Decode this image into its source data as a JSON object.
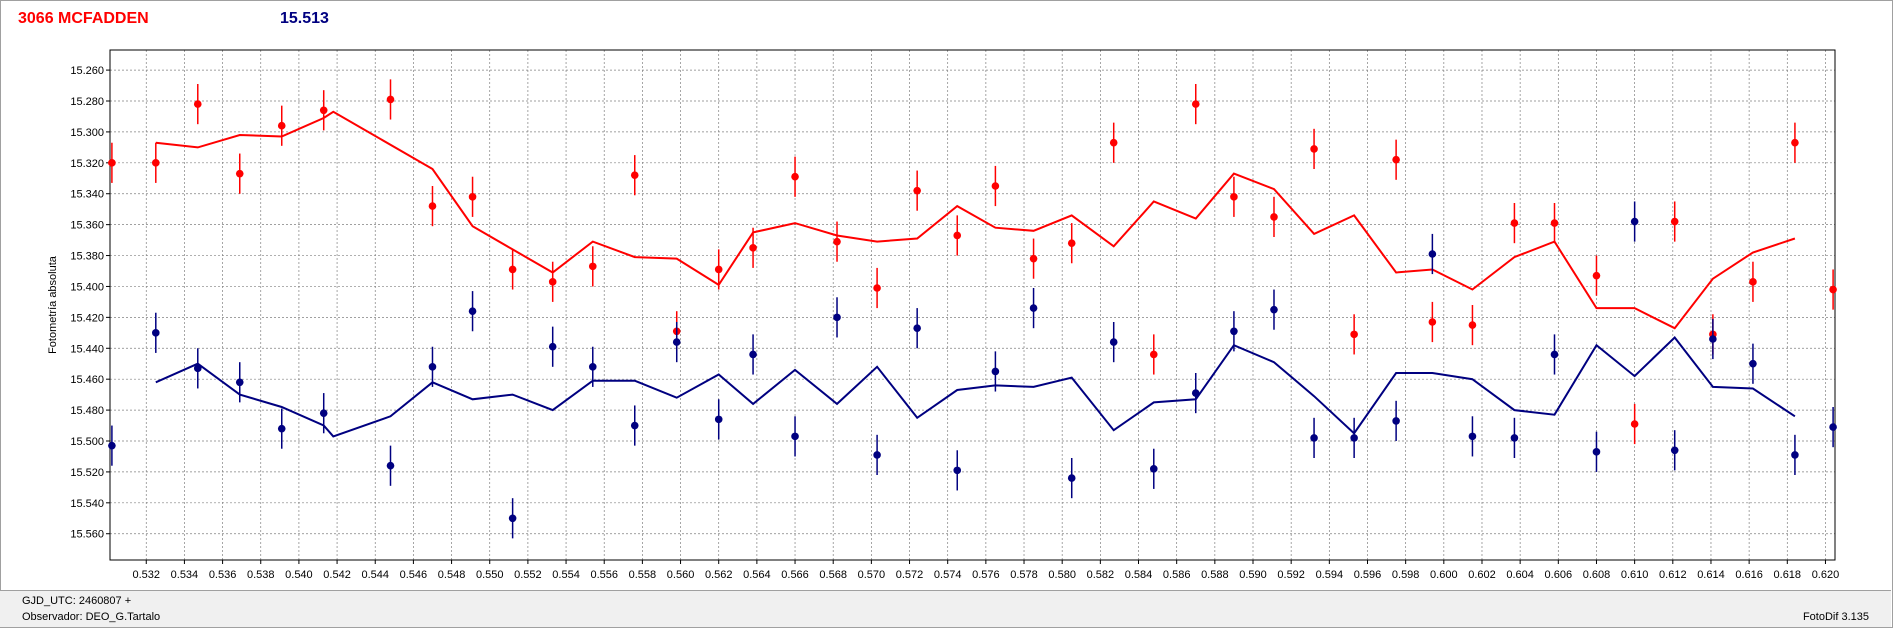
{
  "header": {
    "star_name": "3066 MCFADDEN",
    "magnitude": "15.513"
  },
  "footer": {
    "gjd": "GJD_UTC: 2460807 +",
    "observer": "Observador: DEO_G.Tartalo",
    "version": "FotoDif 3.135"
  },
  "colors": {
    "red_series": "#ff0000",
    "blue_series": "#000080",
    "grid": "#808080"
  },
  "chart_data": {
    "type": "scatter",
    "title": "3066 MCFADDEN",
    "xlabel": "",
    "ylabel": "Fotometría absoluta",
    "xlim": [
      0.5301,
      0.6205
    ],
    "ylim": [
      15.577,
      15.247
    ],
    "y_inverted": true,
    "grid": true,
    "x_ticks": [
      0.532,
      0.534,
      0.536,
      0.538,
      0.54,
      0.542,
      0.544,
      0.546,
      0.548,
      0.55,
      0.552,
      0.554,
      0.556,
      0.558,
      0.56,
      0.562,
      0.564,
      0.566,
      0.568,
      0.57,
      0.572,
      0.574,
      0.576,
      0.578,
      0.58,
      0.582,
      0.584,
      0.586,
      0.588,
      0.59,
      0.592,
      0.594,
      0.596,
      0.598,
      0.6,
      0.602,
      0.604,
      0.606,
      0.608,
      0.61,
      0.612,
      0.614,
      0.616,
      0.618,
      0.62
    ],
    "x_tick_labels": [
      "0.532",
      "0.534",
      "0.536",
      "0.538",
      "0.540",
      "0.542",
      "0.544",
      "0.546",
      "0.548",
      "0.550",
      "0.552",
      "0.554",
      "0.556",
      "0.558",
      "0.560",
      "0.562",
      "0.564",
      "0.566",
      "0.568",
      "0.570",
      "0.572",
      "0.574",
      "0.576",
      "0.578",
      "0.580",
      "0.582",
      "0.584",
      "0.586",
      "0.588",
      "0.590",
      "0.592",
      "0.594",
      "0.596",
      "0.598",
      "0.600",
      "0.602",
      "0.604",
      "0.606",
      "0.608",
      "0.610",
      "0.612",
      "0.614",
      "0.616",
      "0.618",
      "0.620"
    ],
    "y_ticks": [
      15.26,
      15.28,
      15.3,
      15.32,
      15.34,
      15.36,
      15.38,
      15.4,
      15.42,
      15.44,
      15.46,
      15.48,
      15.5,
      15.52,
      15.54,
      15.56
    ],
    "y_tick_labels": [
      "15.260",
      "15.280",
      "15.300",
      "15.320",
      "15.340",
      "15.360",
      "15.380",
      "15.400",
      "15.420",
      "15.440",
      "15.460",
      "15.480",
      "15.500",
      "15.520",
      "15.540",
      "15.560"
    ],
    "series": [
      {
        "color": "#ff0000",
        "points": [
          {
            "x": 0.5302,
            "y": 15.32,
            "err": 0.013
          },
          {
            "x": 0.5325,
            "y": 15.32,
            "err": 0.013
          },
          {
            "x": 0.5347,
            "y": 15.282,
            "err": 0.013
          },
          {
            "x": 0.5369,
            "y": 15.327,
            "err": 0.013
          },
          {
            "x": 0.5391,
            "y": 15.296,
            "err": 0.013
          },
          {
            "x": 0.5413,
            "y": 15.286,
            "err": 0.013
          },
          {
            "x": 0.5448,
            "y": 15.279,
            "err": 0.013
          },
          {
            "x": 0.547,
            "y": 15.348,
            "err": 0.013
          },
          {
            "x": 0.5491,
            "y": 15.342,
            "err": 0.013
          },
          {
            "x": 0.5512,
            "y": 15.389,
            "err": 0.013
          },
          {
            "x": 0.5533,
            "y": 15.397,
            "err": 0.013
          },
          {
            "x": 0.5554,
            "y": 15.387,
            "err": 0.013
          },
          {
            "x": 0.5576,
            "y": 15.328,
            "err": 0.013
          },
          {
            "x": 0.5598,
            "y": 15.429,
            "err": 0.013
          },
          {
            "x": 0.562,
            "y": 15.389,
            "err": 0.013
          },
          {
            "x": 0.5638,
            "y": 15.375,
            "err": 0.013
          },
          {
            "x": 0.566,
            "y": 15.329,
            "err": 0.013
          },
          {
            "x": 0.5682,
            "y": 15.371,
            "err": 0.013
          },
          {
            "x": 0.5703,
            "y": 15.401,
            "err": 0.013
          },
          {
            "x": 0.5724,
            "y": 15.338,
            "err": 0.013
          },
          {
            "x": 0.5745,
            "y": 15.367,
            "err": 0.013
          },
          {
            "x": 0.5765,
            "y": 15.335,
            "err": 0.013
          },
          {
            "x": 0.5785,
            "y": 15.382,
            "err": 0.013
          },
          {
            "x": 0.5805,
            "y": 15.372,
            "err": 0.013
          },
          {
            "x": 0.5827,
            "y": 15.307,
            "err": 0.013
          },
          {
            "x": 0.5848,
            "y": 15.444,
            "err": 0.013
          },
          {
            "x": 0.587,
            "y": 15.282,
            "err": 0.013
          },
          {
            "x": 0.589,
            "y": 15.342,
            "err": 0.013
          },
          {
            "x": 0.5911,
            "y": 15.355,
            "err": 0.013
          },
          {
            "x": 0.5932,
            "y": 15.311,
            "err": 0.013
          },
          {
            "x": 0.5953,
            "y": 15.431,
            "err": 0.013
          },
          {
            "x": 0.5975,
            "y": 15.318,
            "err": 0.013
          },
          {
            "x": 0.5994,
            "y": 15.423,
            "err": 0.013
          },
          {
            "x": 0.6015,
            "y": 15.425,
            "err": 0.013
          },
          {
            "x": 0.6037,
            "y": 15.359,
            "err": 0.013
          },
          {
            "x": 0.6058,
            "y": 15.359,
            "err": 0.013
          },
          {
            "x": 0.608,
            "y": 15.393,
            "err": 0.013
          },
          {
            "x": 0.61,
            "y": 15.489,
            "err": 0.013
          },
          {
            "x": 0.6121,
            "y": 15.358,
            "err": 0.013
          },
          {
            "x": 0.6141,
            "y": 15.431,
            "err": 0.013
          },
          {
            "x": 0.6162,
            "y": 15.397,
            "err": 0.013
          },
          {
            "x": 0.6184,
            "y": 15.307,
            "err": 0.013
          },
          {
            "x": 0.6204,
            "y": 15.402,
            "err": 0.013
          }
        ],
        "line": [
          {
            "x": 0.5325,
            "y": 15.307
          },
          {
            "x": 0.5347,
            "y": 15.31
          },
          {
            "x": 0.5369,
            "y": 15.302
          },
          {
            "x": 0.5391,
            "y": 15.303
          },
          {
            "x": 0.5413,
            "y": 15.291
          },
          {
            "x": 0.5418,
            "y": 15.287
          },
          {
            "x": 0.547,
            "y": 15.324
          },
          {
            "x": 0.5491,
            "y": 15.361
          },
          {
            "x": 0.5512,
            "y": 15.376
          },
          {
            "x": 0.5533,
            "y": 15.391
          },
          {
            "x": 0.5554,
            "y": 15.371
          },
          {
            "x": 0.5576,
            "y": 15.381
          },
          {
            "x": 0.5598,
            "y": 15.382
          },
          {
            "x": 0.562,
            "y": 15.399
          },
          {
            "x": 0.5638,
            "y": 15.365
          },
          {
            "x": 0.566,
            "y": 15.359
          },
          {
            "x": 0.5682,
            "y": 15.367
          },
          {
            "x": 0.5703,
            "y": 15.371
          },
          {
            "x": 0.5724,
            "y": 15.369
          },
          {
            "x": 0.5745,
            "y": 15.348
          },
          {
            "x": 0.5765,
            "y": 15.362
          },
          {
            "x": 0.5785,
            "y": 15.364
          },
          {
            "x": 0.5805,
            "y": 15.354
          },
          {
            "x": 0.5827,
            "y": 15.374
          },
          {
            "x": 0.5848,
            "y": 15.345
          },
          {
            "x": 0.587,
            "y": 15.356
          },
          {
            "x": 0.589,
            "y": 15.327
          },
          {
            "x": 0.5911,
            "y": 15.337
          },
          {
            "x": 0.5932,
            "y": 15.366
          },
          {
            "x": 0.5953,
            "y": 15.354
          },
          {
            "x": 0.5975,
            "y": 15.391
          },
          {
            "x": 0.5994,
            "y": 15.389
          },
          {
            "x": 0.6015,
            "y": 15.402
          },
          {
            "x": 0.6037,
            "y": 15.381
          },
          {
            "x": 0.6058,
            "y": 15.371
          },
          {
            "x": 0.608,
            "y": 15.414
          },
          {
            "x": 0.61,
            "y": 15.414
          },
          {
            "x": 0.6121,
            "y": 15.427
          },
          {
            "x": 0.6141,
            "y": 15.395
          },
          {
            "x": 0.6162,
            "y": 15.378
          },
          {
            "x": 0.6184,
            "y": 15.369
          }
        ]
      },
      {
        "color": "#000080",
        "points": [
          {
            "x": 0.5302,
            "y": 15.503,
            "err": 0.013
          },
          {
            "x": 0.5325,
            "y": 15.43,
            "err": 0.013
          },
          {
            "x": 0.5347,
            "y": 15.453,
            "err": 0.013
          },
          {
            "x": 0.5369,
            "y": 15.462,
            "err": 0.013
          },
          {
            "x": 0.5391,
            "y": 15.492,
            "err": 0.013
          },
          {
            "x": 0.5413,
            "y": 15.482,
            "err": 0.013
          },
          {
            "x": 0.5448,
            "y": 15.516,
            "err": 0.013
          },
          {
            "x": 0.547,
            "y": 15.452,
            "err": 0.013
          },
          {
            "x": 0.5491,
            "y": 15.416,
            "err": 0.013
          },
          {
            "x": 0.5512,
            "y": 15.55,
            "err": 0.013
          },
          {
            "x": 0.5533,
            "y": 15.439,
            "err": 0.013
          },
          {
            "x": 0.5554,
            "y": 15.452,
            "err": 0.013
          },
          {
            "x": 0.5576,
            "y": 15.49,
            "err": 0.013
          },
          {
            "x": 0.5598,
            "y": 15.436,
            "err": 0.013
          },
          {
            "x": 0.562,
            "y": 15.486,
            "err": 0.013
          },
          {
            "x": 0.5638,
            "y": 15.444,
            "err": 0.013
          },
          {
            "x": 0.566,
            "y": 15.497,
            "err": 0.013
          },
          {
            "x": 0.5682,
            "y": 15.42,
            "err": 0.013
          },
          {
            "x": 0.5703,
            "y": 15.509,
            "err": 0.013
          },
          {
            "x": 0.5724,
            "y": 15.427,
            "err": 0.013
          },
          {
            "x": 0.5745,
            "y": 15.519,
            "err": 0.013
          },
          {
            "x": 0.5765,
            "y": 15.455,
            "err": 0.013
          },
          {
            "x": 0.5785,
            "y": 15.414,
            "err": 0.013
          },
          {
            "x": 0.5805,
            "y": 15.524,
            "err": 0.013
          },
          {
            "x": 0.5827,
            "y": 15.436,
            "err": 0.013
          },
          {
            "x": 0.5848,
            "y": 15.518,
            "err": 0.013
          },
          {
            "x": 0.587,
            "y": 15.469,
            "err": 0.013
          },
          {
            "x": 0.589,
            "y": 15.429,
            "err": 0.013
          },
          {
            "x": 0.5911,
            "y": 15.415,
            "err": 0.013
          },
          {
            "x": 0.5932,
            "y": 15.498,
            "err": 0.013
          },
          {
            "x": 0.5953,
            "y": 15.498,
            "err": 0.013
          },
          {
            "x": 0.5975,
            "y": 15.487,
            "err": 0.013
          },
          {
            "x": 0.5994,
            "y": 15.379,
            "err": 0.013
          },
          {
            "x": 0.6015,
            "y": 15.497,
            "err": 0.013
          },
          {
            "x": 0.6037,
            "y": 15.498,
            "err": 0.013
          },
          {
            "x": 0.6058,
            "y": 15.444,
            "err": 0.013
          },
          {
            "x": 0.608,
            "y": 15.507,
            "err": 0.013
          },
          {
            "x": 0.61,
            "y": 15.358,
            "err": 0.013
          },
          {
            "x": 0.6121,
            "y": 15.506,
            "err": 0.013
          },
          {
            "x": 0.6141,
            "y": 15.434,
            "err": 0.013
          },
          {
            "x": 0.6162,
            "y": 15.45,
            "err": 0.013
          },
          {
            "x": 0.6184,
            "y": 15.509,
            "err": 0.013
          },
          {
            "x": 0.6204,
            "y": 15.491,
            "err": 0.013
          }
        ],
        "line": [
          {
            "x": 0.5325,
            "y": 15.462
          },
          {
            "x": 0.5347,
            "y": 15.45
          },
          {
            "x": 0.5369,
            "y": 15.47
          },
          {
            "x": 0.5391,
            "y": 15.478
          },
          {
            "x": 0.5413,
            "y": 15.49
          },
          {
            "x": 0.5418,
            "y": 15.497
          },
          {
            "x": 0.5448,
            "y": 15.484
          },
          {
            "x": 0.547,
            "y": 15.462
          },
          {
            "x": 0.5491,
            "y": 15.473
          },
          {
            "x": 0.5512,
            "y": 15.47
          },
          {
            "x": 0.5533,
            "y": 15.48
          },
          {
            "x": 0.5554,
            "y": 15.461
          },
          {
            "x": 0.5576,
            "y": 15.461
          },
          {
            "x": 0.5598,
            "y": 15.472
          },
          {
            "x": 0.562,
            "y": 15.457
          },
          {
            "x": 0.5638,
            "y": 15.476
          },
          {
            "x": 0.566,
            "y": 15.454
          },
          {
            "x": 0.5682,
            "y": 15.476
          },
          {
            "x": 0.5703,
            "y": 15.452
          },
          {
            "x": 0.5724,
            "y": 15.485
          },
          {
            "x": 0.5745,
            "y": 15.467
          },
          {
            "x": 0.5765,
            "y": 15.464
          },
          {
            "x": 0.5785,
            "y": 15.465
          },
          {
            "x": 0.5805,
            "y": 15.459
          },
          {
            "x": 0.5827,
            "y": 15.493
          },
          {
            "x": 0.5848,
            "y": 15.475
          },
          {
            "x": 0.587,
            "y": 15.473
          },
          {
            "x": 0.589,
            "y": 15.438
          },
          {
            "x": 0.5911,
            "y": 15.449
          },
          {
            "x": 0.5932,
            "y": 15.471
          },
          {
            "x": 0.5953,
            "y": 15.495
          },
          {
            "x": 0.5975,
            "y": 15.456
          },
          {
            "x": 0.5994,
            "y": 15.456
          },
          {
            "x": 0.6015,
            "y": 15.46
          },
          {
            "x": 0.6037,
            "y": 15.48
          },
          {
            "x": 0.6058,
            "y": 15.483
          },
          {
            "x": 0.608,
            "y": 15.438
          },
          {
            "x": 0.61,
            "y": 15.458
          },
          {
            "x": 0.6121,
            "y": 15.433
          },
          {
            "x": 0.6141,
            "y": 15.465
          },
          {
            "x": 0.6162,
            "y": 15.466
          },
          {
            "x": 0.6184,
            "y": 15.484
          }
        ]
      }
    ]
  }
}
